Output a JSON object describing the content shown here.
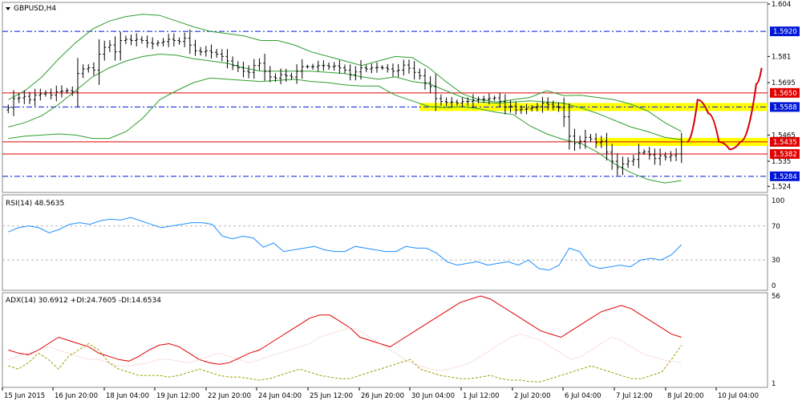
{
  "colors": {
    "background": "#ffffff",
    "frame": "#8a8a8a",
    "candle": "#000000",
    "bollinger": "#2e9e2e",
    "hline_blue": "#0018d6",
    "hline_red": "#e00000",
    "highlight": "#ffff00",
    "rsi": "#1e90ff",
    "adx": "#e00000",
    "plus_di": "#9aa000",
    "minus_di": "#e8a0a0",
    "drawing": "#d40000",
    "level_label_blue": "#0018d6",
    "level_label_red": "#e00000"
  },
  "chart_data": [
    {
      "type": "candlestick",
      "title": "GBPUSD,H4",
      "ylim": [
        1.522,
        1.604
      ],
      "y_ticks": [
        1.604,
        1.581,
        1.5695,
        1.5465,
        1.535,
        1.524
      ],
      "x_ticks": [
        "15 Jun 2015",
        "16 Jun 20:00",
        "18 Jun 04:00",
        "19 Jun 12:00",
        "22 Jun 20:00",
        "24 Jun 04:00",
        "25 Jun 12:00",
        "26 Jun 20:00",
        "30 Jun 04:00",
        "1 Jul 12:00",
        "2 Jul 20:00",
        "6 Jul 04:00",
        "7 Jul 12:00",
        "8 Jul 20:00",
        "10 Jul 04:00"
      ],
      "close": [
        1.5585,
        1.5625,
        1.5628,
        1.5635,
        1.562,
        1.564,
        1.5645,
        1.565,
        1.564,
        1.5655,
        1.5658,
        1.566,
        1.5655,
        1.5735,
        1.5755,
        1.576,
        1.575,
        1.582,
        1.585,
        1.586,
        1.583,
        1.588,
        1.5885,
        1.588,
        1.5885,
        1.588,
        1.587,
        1.5865,
        1.587,
        1.5875,
        1.5885,
        1.588,
        1.5875,
        1.589,
        1.586,
        1.5835,
        1.583,
        1.5835,
        1.5828,
        1.582,
        1.581,
        1.579,
        1.577,
        1.576,
        1.5745,
        1.574,
        1.577,
        1.578,
        1.5745,
        1.572,
        1.5715,
        1.573,
        1.5725,
        1.572,
        1.5745,
        1.5765,
        1.5765,
        1.5765,
        1.577,
        1.577,
        1.5765,
        1.5768,
        1.576,
        1.575,
        1.573,
        1.5742,
        1.576,
        1.5755,
        1.576,
        1.5762,
        1.576,
        1.5755,
        1.5745,
        1.575,
        1.5772,
        1.5758,
        1.574,
        1.5725,
        1.5695,
        1.5678,
        1.5625,
        1.5612,
        1.5608,
        1.561,
        1.5605,
        1.5612,
        1.5612,
        1.5618,
        1.5622,
        1.5622,
        1.5625,
        1.5628,
        1.5612,
        1.5588,
        1.5592,
        1.5575,
        1.5578,
        1.558,
        1.5585,
        1.559,
        1.5605,
        1.56,
        1.559,
        1.5585,
        1.5545,
        1.546,
        1.5428,
        1.5438,
        1.5455,
        1.5448,
        1.5432,
        1.5438,
        1.539,
        1.535,
        1.5322,
        1.5338,
        1.535,
        1.5358,
        1.5388,
        1.5392,
        1.5378,
        1.5362,
        1.5375,
        1.5368,
        1.5375,
        1.5382,
        1.5435
      ],
      "series": [
        {
          "name": "",
          "kind": "bollinger_upper",
          "values": [
            1.562,
            1.566,
            1.572,
            1.58,
            1.587,
            1.593,
            1.5965,
            1.5985,
            1.5995,
            1.599,
            1.5965,
            1.594,
            1.592,
            1.591,
            1.59,
            1.588,
            1.588,
            1.586,
            1.583,
            1.581,
            1.579,
            1.577,
            1.579,
            1.581,
            1.5805,
            1.576,
            1.57,
            1.5645,
            1.562,
            1.561,
            1.562,
            1.563,
            1.566,
            1.5638,
            1.564,
            1.563,
            1.562,
            1.56,
            1.557,
            1.552,
            1.548
          ]
        },
        {
          "name": "",
          "kind": "bollinger_middle",
          "values": [
            1.55,
            1.552,
            1.555,
            1.56,
            1.566,
            1.572,
            1.576,
            1.579,
            1.581,
            1.582,
            1.5815,
            1.58,
            1.579,
            1.578,
            1.576,
            1.5745,
            1.5745,
            1.5745,
            1.5745,
            1.574,
            1.5735,
            1.572,
            1.571,
            1.572,
            1.57,
            1.569,
            1.566,
            1.563,
            1.561,
            1.5605,
            1.561,
            1.5615,
            1.561,
            1.5605,
            1.5585,
            1.556,
            1.553,
            1.55,
            1.548,
            1.5455,
            1.5445
          ]
        },
        {
          "name": "",
          "kind": "bollinger_lower",
          "values": [
            1.545,
            1.546,
            1.5465,
            1.547,
            1.5465,
            1.545,
            1.545,
            1.548,
            1.554,
            1.562,
            1.566,
            1.5695,
            1.5715,
            1.571,
            1.5705,
            1.57,
            1.5705,
            1.571,
            1.57,
            1.5695,
            1.5685,
            1.568,
            1.568,
            1.564,
            1.5615,
            1.559,
            1.5585,
            1.559,
            1.558,
            1.5565,
            1.5555,
            1.5505,
            1.547,
            1.5445,
            1.543,
            1.539,
            1.534,
            1.53,
            1.527,
            1.5255,
            1.5265
          ]
        }
      ],
      "levels": [
        {
          "value": 1.592,
          "label": "1.5920",
          "style": "dashdot",
          "color": "blue"
        },
        {
          "value": 1.565,
          "label": "1.5650",
          "style": "solid",
          "color": "red"
        },
        {
          "value": 1.5588,
          "label": "1.5588",
          "style": "dashdot",
          "color": "blue",
          "highlight_from_index": 77
        },
        {
          "value": 1.5435,
          "label": "1.5435",
          "style": "solid",
          "color": "red",
          "highlight_from_index": 110
        },
        {
          "value": 1.5382,
          "label": "1.5382",
          "style": "solid",
          "color": "red"
        },
        {
          "value": 1.5284,
          "label": "1.5284",
          "style": "dashdot",
          "color": "blue"
        }
      ],
      "projection": [
        {
          "index": 127,
          "value": 1.5435
        },
        {
          "index": 129,
          "value": 1.562
        },
        {
          "index": 131,
          "value": 1.556
        },
        {
          "index": 133,
          "value": 1.5435
        },
        {
          "index": 135,
          "value": 1.5402
        },
        {
          "index": 137,
          "value": 1.5435
        },
        {
          "index": 140,
          "value": 1.569
        },
        {
          "index": 141,
          "value": 1.576
        }
      ]
    },
    {
      "type": "line",
      "title": "RSI(14) 48.5635",
      "ylim": [
        0,
        100
      ],
      "y_ticks": [
        100,
        70,
        30,
        0
      ],
      "reference_lines": [
        70,
        30
      ],
      "series": [
        {
          "name": "",
          "values": [
            63,
            68,
            70,
            68,
            62,
            66,
            72,
            74,
            72,
            76,
            78,
            77,
            80,
            76,
            72,
            68,
            70,
            72,
            74,
            74,
            72,
            58,
            55,
            58,
            56,
            45,
            50,
            40,
            42,
            44,
            46,
            42,
            40,
            40,
            46,
            44,
            42,
            40,
            40,
            46,
            44,
            44,
            38,
            28,
            24,
            26,
            28,
            24,
            26,
            28,
            24,
            30,
            20,
            18,
            24,
            44,
            40,
            24,
            20,
            22,
            24,
            22,
            30,
            32,
            30,
            36,
            48
          ]
        }
      ]
    },
    {
      "type": "line",
      "title": "ADX(14) 30.6912 +DI:24.7605 -DI:14.6534",
      "ylim": [
        1,
        56
      ],
      "y_ticks": [
        56,
        1
      ],
      "series": [
        {
          "name": "",
          "kind": "adx",
          "values": [
            22,
            20,
            19,
            22,
            26,
            30,
            28,
            26,
            24,
            20,
            18,
            16,
            15,
            18,
            22,
            25,
            26,
            24,
            20,
            16,
            14,
            13,
            14,
            17,
            20,
            22,
            26,
            30,
            34,
            38,
            42,
            44,
            44,
            40,
            36,
            30,
            28,
            26,
            24,
            28,
            32,
            36,
            40,
            44,
            48,
            52,
            54,
            56,
            54,
            50,
            46,
            42,
            38,
            34,
            32,
            30,
            34,
            38,
            42,
            46,
            48,
            50,
            48,
            44,
            40,
            36,
            32,
            30
          ]
        },
        {
          "name": "",
          "kind": "plus_di",
          "values": [
            12,
            10,
            14,
            20,
            16,
            10,
            18,
            22,
            26,
            22,
            14,
            10,
            8,
            6,
            6,
            6,
            5,
            6,
            8,
            10,
            8,
            6,
            5,
            5,
            4,
            3,
            4,
            6,
            8,
            10,
            8,
            6,
            5,
            4,
            4,
            6,
            8,
            10,
            12,
            14,
            16,
            10,
            8,
            6,
            5,
            4,
            4,
            5,
            6,
            4,
            3,
            3,
            2,
            2,
            4,
            6,
            8,
            10,
            12,
            10,
            8,
            6,
            4,
            4,
            6,
            8,
            16,
            25
          ]
        },
        {
          "name": "",
          "kind": "minus_di",
          "values": [
            16,
            18,
            20,
            22,
            24,
            22,
            20,
            18,
            16,
            16,
            14,
            12,
            12,
            13,
            14,
            16,
            16,
            15,
            14,
            16,
            18,
            20,
            18,
            16,
            14,
            16,
            18,
            20,
            22,
            24,
            26,
            30,
            32,
            34,
            36,
            34,
            30,
            26,
            22,
            18,
            14,
            12,
            10,
            9,
            10,
            12,
            14,
            18,
            22,
            26,
            30,
            32,
            30,
            28,
            24,
            20,
            16,
            18,
            22,
            26,
            30,
            28,
            24,
            20,
            18,
            16,
            15,
            14
          ]
        }
      ]
    }
  ]
}
